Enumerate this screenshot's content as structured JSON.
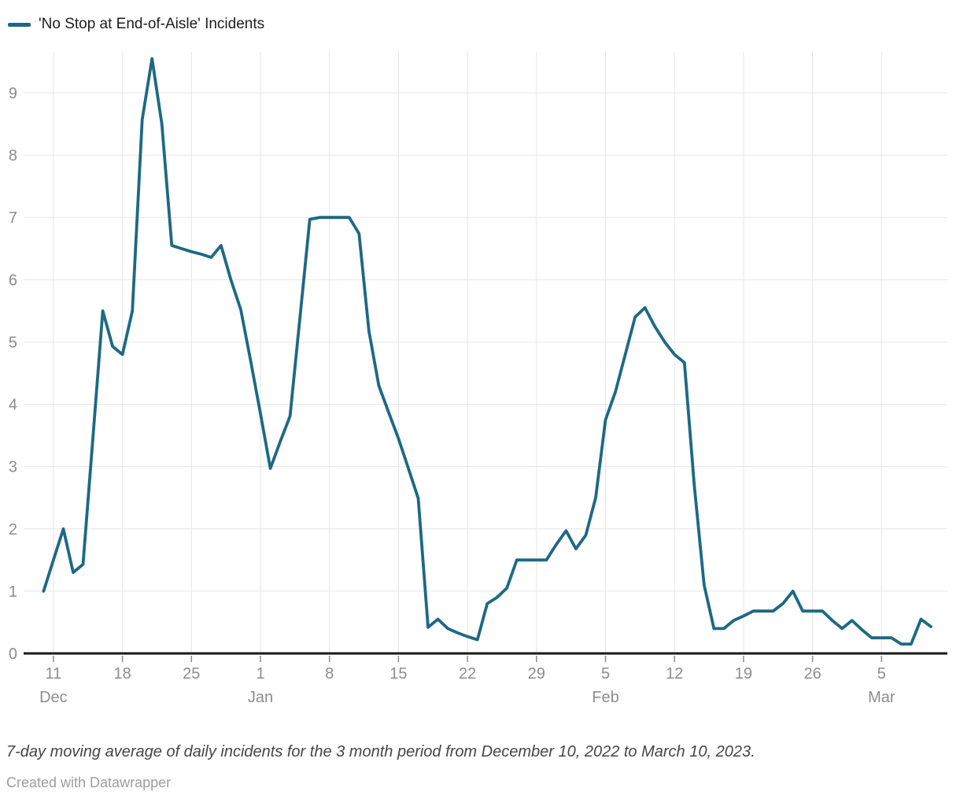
{
  "legend": {
    "label": "'No Stop at End-of-Aisle' Incidents"
  },
  "footer": {
    "note": "7-day moving average of daily incidents for the 3 month period from December 10, 2022 to March 10, 2023.",
    "attribution": "Created with Datawrapper"
  },
  "colors": {
    "line": "#1d6984",
    "grid": "#e6e6e6",
    "axis": "#191919",
    "tick": "#8c8c8c",
    "tick_label": "#8d8d8d",
    "legend_text": "#1d1d1d",
    "note_text": "#464646",
    "attribution_text": "#9e9e9e"
  },
  "chart_data": {
    "type": "line",
    "title": "'No Stop at End-of-Aisle' Incidents",
    "xlabel": "",
    "ylabel": "",
    "ylim": [
      0,
      9.6
    ],
    "grid": true,
    "legend_position": "top-left",
    "yticks": [
      0,
      1,
      2,
      3,
      4,
      5,
      6,
      7,
      8,
      9
    ],
    "xticks": [
      {
        "index": 1,
        "day": "11",
        "month": "Dec"
      },
      {
        "index": 8,
        "day": "18",
        "month": ""
      },
      {
        "index": 15,
        "day": "25",
        "month": ""
      },
      {
        "index": 22,
        "day": "1",
        "month": "Jan"
      },
      {
        "index": 29,
        "day": "8",
        "month": ""
      },
      {
        "index": 36,
        "day": "15",
        "month": ""
      },
      {
        "index": 43,
        "day": "22",
        "month": ""
      },
      {
        "index": 50,
        "day": "29",
        "month": ""
      },
      {
        "index": 57,
        "day": "5",
        "month": "Feb"
      },
      {
        "index": 64,
        "day": "12",
        "month": ""
      },
      {
        "index": 71,
        "day": "19",
        "month": ""
      },
      {
        "index": 78,
        "day": "26",
        "month": ""
      },
      {
        "index": 85,
        "day": "5",
        "month": "Mar"
      }
    ],
    "series": [
      {
        "name": "'No Stop at End-of-Aisle' Incidents",
        "dates": [
          "2022-12-10",
          "2022-12-11",
          "2022-12-12",
          "2022-12-13",
          "2022-12-14",
          "2022-12-15",
          "2022-12-16",
          "2022-12-17",
          "2022-12-18",
          "2022-12-19",
          "2022-12-20",
          "2022-12-21",
          "2022-12-22",
          "2022-12-23",
          "2022-12-24",
          "2022-12-25",
          "2022-12-26",
          "2022-12-27",
          "2022-12-28",
          "2022-12-29",
          "2022-12-30",
          "2022-12-31",
          "2023-01-01",
          "2023-01-02",
          "2023-01-03",
          "2023-01-04",
          "2023-01-05",
          "2023-01-06",
          "2023-01-07",
          "2023-01-08",
          "2023-01-09",
          "2023-01-10",
          "2023-01-11",
          "2023-01-12",
          "2023-01-13",
          "2023-01-14",
          "2023-01-15",
          "2023-01-16",
          "2023-01-17",
          "2023-01-18",
          "2023-01-19",
          "2023-01-20",
          "2023-01-21",
          "2023-01-22",
          "2023-01-23",
          "2023-01-24",
          "2023-01-25",
          "2023-01-26",
          "2023-01-27",
          "2023-01-28",
          "2023-01-29",
          "2023-01-30",
          "2023-01-31",
          "2023-02-01",
          "2023-02-02",
          "2023-02-03",
          "2023-02-04",
          "2023-02-05",
          "2023-02-06",
          "2023-02-07",
          "2023-02-08",
          "2023-02-09",
          "2023-02-10",
          "2023-02-11",
          "2023-02-12",
          "2023-02-13",
          "2023-02-14",
          "2023-02-15",
          "2023-02-16",
          "2023-02-17",
          "2023-02-18",
          "2023-02-19",
          "2023-02-20",
          "2023-02-21",
          "2023-02-22",
          "2023-02-23",
          "2023-02-24",
          "2023-02-25",
          "2023-02-26",
          "2023-02-27",
          "2023-02-28",
          "2023-03-01",
          "2023-03-02",
          "2023-03-03",
          "2023-03-04",
          "2023-03-05",
          "2023-03-06",
          "2023-03-07",
          "2023-03-08",
          "2023-03-09",
          "2023-03-10"
        ],
        "values": [
          1.0,
          1.5,
          2.0,
          1.3,
          1.43,
          3.45,
          5.5,
          4.93,
          4.8,
          5.5,
          8.57,
          9.55,
          8.5,
          6.55,
          6.5,
          6.45,
          6.41,
          6.36,
          6.55,
          6.0,
          5.52,
          4.7,
          3.85,
          2.97,
          3.4,
          3.81,
          5.38,
          6.97,
          7.0,
          7.0,
          7.0,
          7.0,
          6.74,
          5.18,
          4.3,
          3.87,
          3.45,
          2.97,
          2.49,
          0.42,
          0.55,
          0.4,
          0.33,
          0.27,
          0.22,
          0.8,
          0.9,
          1.05,
          1.5,
          1.5,
          1.5,
          1.5,
          1.75,
          1.97,
          1.68,
          1.9,
          2.5,
          3.75,
          4.2,
          4.8,
          5.4,
          5.55,
          5.25,
          5.0,
          4.8,
          4.67,
          2.7,
          1.1,
          0.4,
          0.4,
          0.53,
          0.6,
          0.68,
          0.68,
          0.68,
          0.8,
          1.0,
          0.68,
          0.68,
          0.68,
          0.53,
          0.4,
          0.53,
          0.38,
          0.25,
          0.25,
          0.25,
          0.15,
          0.15,
          0.55,
          0.43
        ]
      }
    ]
  }
}
